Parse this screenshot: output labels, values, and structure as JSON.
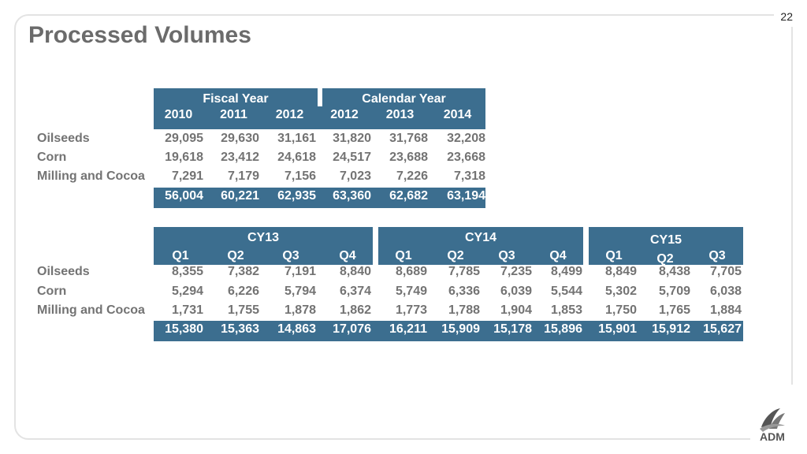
{
  "page_number": "22",
  "title": "Processed Volumes",
  "annual": {
    "group_headers": [
      "Fiscal Year",
      "Calendar Year"
    ],
    "columns": [
      "2010",
      "2011",
      "2012",
      "2012",
      "2013",
      "2014"
    ],
    "rows": [
      {
        "label": "Oilseeds",
        "values": [
          "29,095",
          "29,630",
          "31,161",
          "31,820",
          "31,768",
          "32,208"
        ]
      },
      {
        "label": "Corn",
        "values": [
          "19,618",
          "23,412",
          "24,618",
          "24,517",
          "23,688",
          "23,668"
        ]
      },
      {
        "label": "Milling and Cocoa",
        "values": [
          "7,291",
          "7,179",
          "7,156",
          "7,023",
          "7,226",
          "7,318"
        ]
      }
    ],
    "totals": [
      "56,004",
      "60,221",
      "62,935",
      "63,360",
      "62,682",
      "63,194"
    ]
  },
  "quarterly": {
    "group_headers": [
      "CY13",
      "CY14",
      "CY15"
    ],
    "columns": [
      "Q1",
      "Q2",
      "Q3",
      "Q4",
      "Q1",
      "Q2",
      "Q3",
      "Q4",
      "Q1",
      "Q2",
      "Q3"
    ],
    "rows": [
      {
        "label": "Oilseeds",
        "values": [
          "8,355",
          "7,382",
          "7,191",
          "8,840",
          "8,689",
          "7,785",
          "7,235",
          "8,499",
          "8,849",
          "8,438",
          "7,705"
        ]
      },
      {
        "label": "Corn",
        "values": [
          "5,294",
          "6,226",
          "5,794",
          "6,374",
          "5,749",
          "6,336",
          "6,039",
          "5,544",
          "5,302",
          "5,709",
          "6,038"
        ]
      },
      {
        "label": "Milling and Cocoa",
        "values": [
          "1,731",
          "1,755",
          "1,878",
          "1,862",
          "1,773",
          "1,788",
          "1,904",
          "1,853",
          "1,750",
          "1,765",
          "1,884"
        ]
      }
    ],
    "totals": [
      "15,380",
      "15,363",
      "14,863",
      "17,076",
      "16,211",
      "15,909",
      "15,178",
      "15,896",
      "15,901",
      "15,912",
      "15,627"
    ]
  },
  "logo_text": "ADM",
  "colors": {
    "header_blue": "#3c6e8f",
    "text_gray": "#737373"
  }
}
